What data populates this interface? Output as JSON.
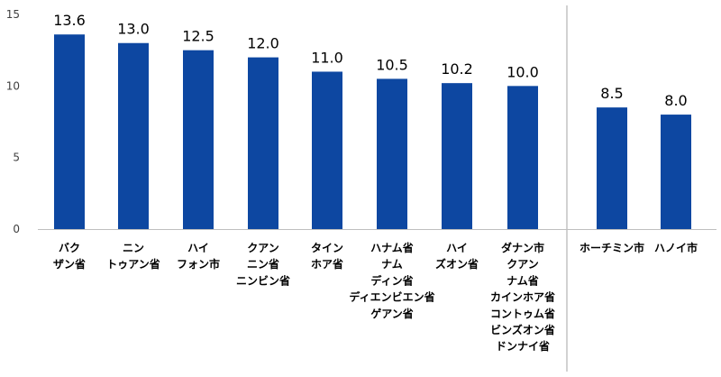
{
  "chart_data": {
    "type": "bar",
    "categories": [
      [
        "バク",
        "ザン省"
      ],
      [
        "ニン",
        "トゥアン省"
      ],
      [
        "ハイ",
        "フォン市"
      ],
      [
        "クアン",
        "ニン省",
        "ニンビン省"
      ],
      [
        "タイン",
        "ホア省"
      ],
      [
        "ハナム省",
        "ナム",
        "ディン省",
        "ディエンビエン省",
        "ゲアン省"
      ],
      [
        "ハイ",
        "ズオン省"
      ],
      [
        "ダナン市",
        "クアン",
        "ナム省",
        "カインホア省",
        "コントゥム省",
        "ビンズオン省",
        "ドンナイ省"
      ],
      [
        "ホーチミン市"
      ],
      [
        "ハノイ市"
      ]
    ],
    "values": [
      13.6,
      13.0,
      12.5,
      12.0,
      11.0,
      10.5,
      10.2,
      10.0,
      8.5,
      8.0
    ],
    "value_labels": [
      "13.6",
      "13.0",
      "12.5",
      "12.0",
      "11.0",
      "10.5",
      "10.2",
      "10.0",
      "8.5",
      "8.0"
    ],
    "yticks": [
      "0",
      "5",
      "10",
      "15"
    ],
    "ylim": [
      0,
      15
    ],
    "separator_after_index": 7,
    "grid": false,
    "colors": {
      "bar": "#0d47a1",
      "axis": "#bfbfbf",
      "separator": "#a6a6a6"
    }
  }
}
